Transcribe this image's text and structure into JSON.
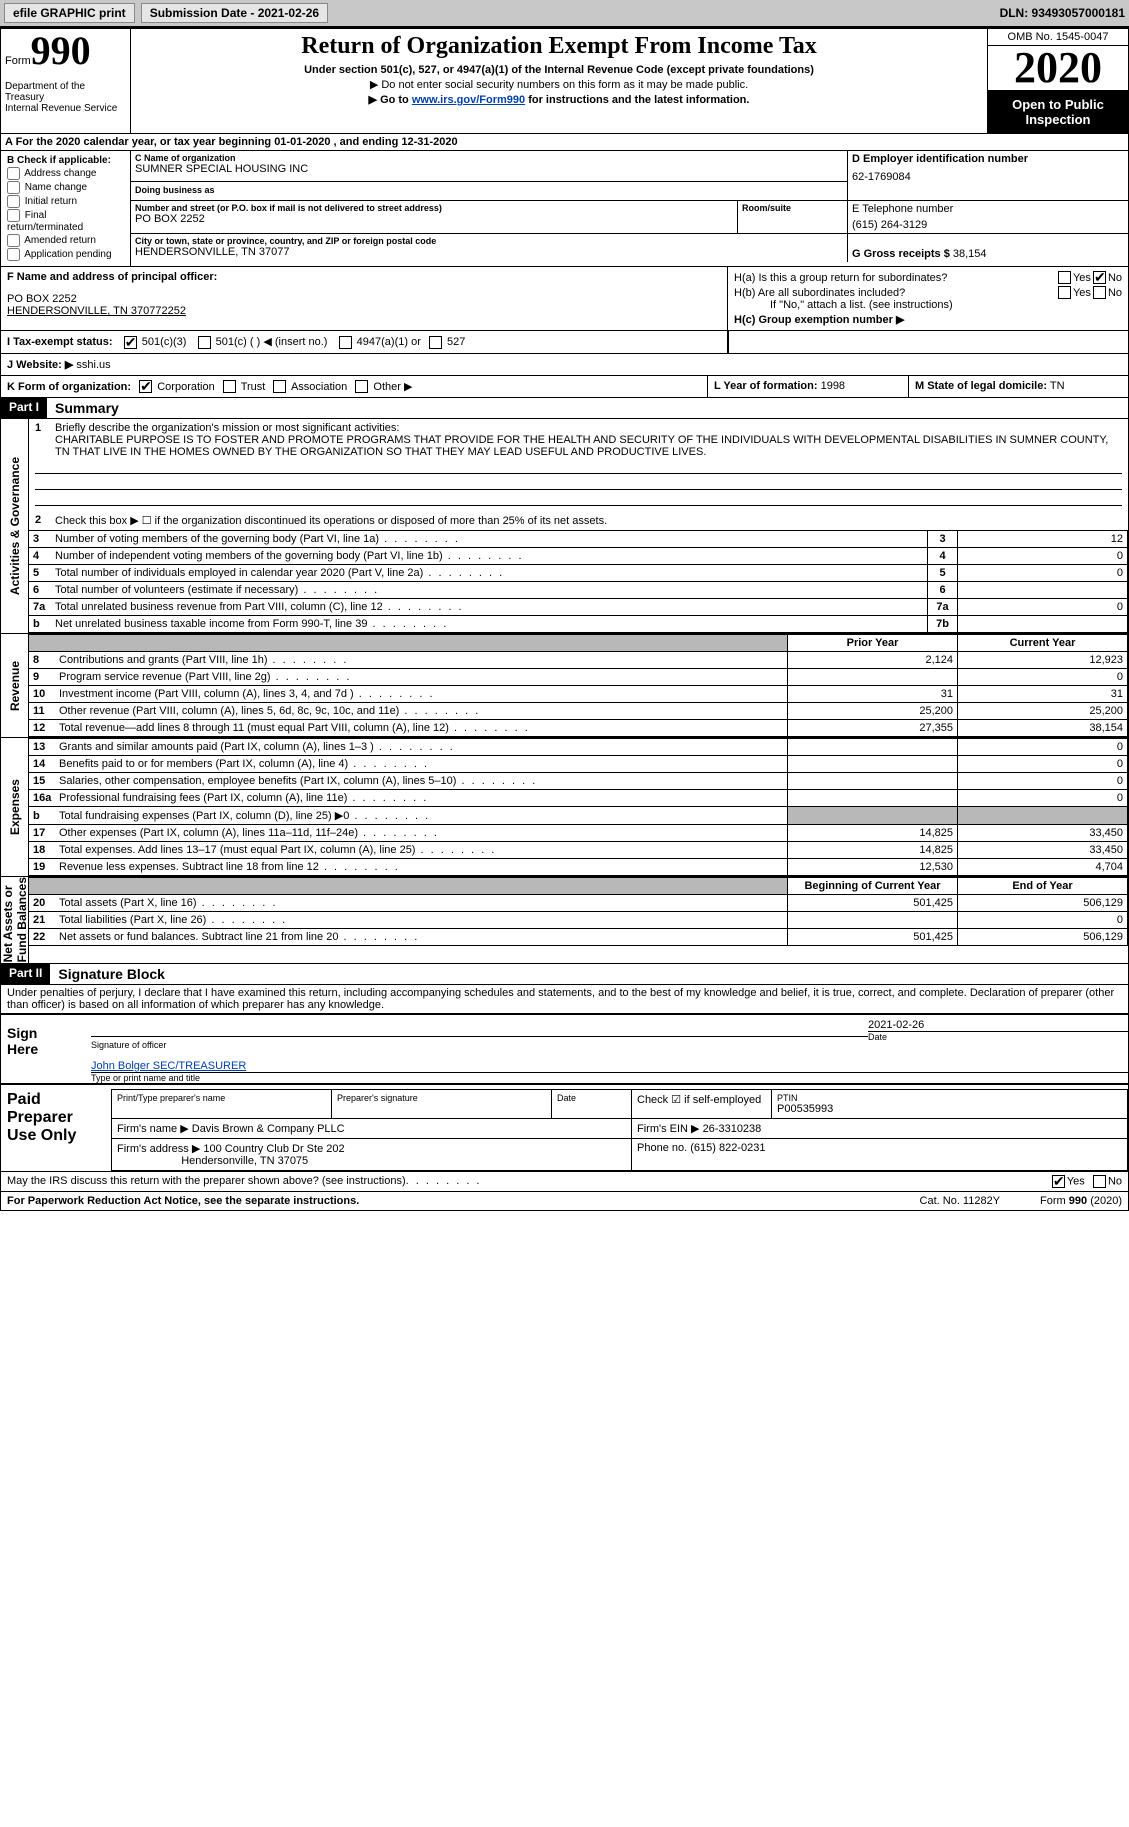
{
  "toolbar": {
    "efile_label": "efile GRAPHIC print",
    "submission_label": "Submission Date - 2021-02-26",
    "dln_label": "DLN: 93493057000181"
  },
  "header": {
    "form_word": "Form",
    "form_num": "990",
    "dept": "Department of the Treasury\nInternal Revenue Service",
    "title": "Return of Organization Exempt From Income Tax",
    "subtitle": "Under section 501(c), 527, or 4947(a)(1) of the Internal Revenue Code (except private foundations)",
    "note1": "▶ Do not enter social security numbers on this form as it may be made public.",
    "note2_pre": "▶ Go to ",
    "note2_link": "www.irs.gov/Form990",
    "note2_post": " for instructions and the latest information.",
    "omb": "OMB No. 1545-0047",
    "year": "2020",
    "open": "Open to Public Inspection"
  },
  "line_a": "A For the 2020 calendar year, or tax year beginning 01-01-2020   , and ending 12-31-2020",
  "box_b": {
    "heading": "B Check if applicable:",
    "items": [
      "Address change",
      "Name change",
      "Initial return",
      "Final return/terminated",
      "Amended return",
      "Application pending"
    ]
  },
  "box_c": {
    "name_lab": "C Name of organization",
    "name": "SUMNER SPECIAL HOUSING INC",
    "dba_lab": "Doing business as",
    "dba": "",
    "addr_lab": "Number and street (or P.O. box if mail is not delivered to street address)",
    "addr": "PO BOX 2252",
    "room_lab": "Room/suite",
    "city_lab": "City or town, state or province, country, and ZIP or foreign postal code",
    "city": "HENDERSONVILLE, TN  37077"
  },
  "box_d": {
    "lab": "D Employer identification number",
    "val": "62-1769084"
  },
  "box_e": {
    "lab": "E Telephone number",
    "val": "(615) 264-3129"
  },
  "box_g": {
    "lab": "G Gross receipts $",
    "val": "38,154"
  },
  "box_f": {
    "lab": "F Name and address of principal officer:",
    "line1": "PO BOX 2252",
    "line2": "HENDERSONVILLE, TN  370772252"
  },
  "box_h": {
    "a_lab": "H(a)  Is this a group return for subordinates?",
    "b_lab": "H(b)  Are all subordinates included?",
    "b_note": "If \"No,\" attach a list. (see instructions)",
    "c_lab": "H(c)  Group exemption number ▶",
    "yes": "Yes",
    "no": "No"
  },
  "box_i": {
    "lab": "I   Tax-exempt status:",
    "opts": [
      "501(c)(3)",
      "501(c) (  ) ◀ (insert no.)",
      "4947(a)(1) or",
      "527"
    ]
  },
  "box_j": {
    "lab": "J   Website: ▶",
    "val": " sshi.us"
  },
  "box_k": {
    "lab": "K Form of organization:",
    "opts": [
      "Corporation",
      "Trust",
      "Association",
      "Other ▶"
    ]
  },
  "box_l": {
    "lab": "L Year of formation:",
    "val": "1998"
  },
  "box_m": {
    "lab": "M State of legal domicile:",
    "val": "TN"
  },
  "part1": {
    "badge": "Part I",
    "title": "Summary",
    "q1_lab": "Briefly describe the organization's mission or most significant activities:",
    "q1_text": "CHARITABLE PURPOSE IS TO FOSTER AND PROMOTE PROGRAMS THAT PROVIDE FOR THE HEALTH AND SECURITY OF THE INDIVIDUALS WITH DEVELOPMENTAL DISABILITIES IN SUMNER COUNTY, TN THAT LIVE IN THE HOMES OWNED BY THE ORGANIZATION SO THAT THEY MAY LEAD USEFUL AND PRODUCTIVE LIVES.",
    "q2": "Check this box ▶ ☐  if the organization discontinued its operations or disposed of more than 25% of its net assets.",
    "vlabels": {
      "gov": "Activities & Governance",
      "rev": "Revenue",
      "exp": "Expenses",
      "net": "Net Assets or\nFund Balances"
    },
    "gov_rows": [
      {
        "n": "3",
        "d": "Number of voting members of the governing body (Part VI, line 1a)",
        "v": "12"
      },
      {
        "n": "4",
        "d": "Number of independent voting members of the governing body (Part VI, line 1b)",
        "v": "0"
      },
      {
        "n": "5",
        "d": "Total number of individuals employed in calendar year 2020 (Part V, line 2a)",
        "v": "0"
      },
      {
        "n": "6",
        "d": "Total number of volunteers (estimate if necessary)",
        "v": ""
      },
      {
        "n": "7a",
        "d": "Total unrelated business revenue from Part VIII, column (C), line 12",
        "v": "0"
      },
      {
        "n": "b",
        "d": "Net unrelated business taxable income from Form 990-T, line 39",
        "v": "",
        "nnum": "7b"
      }
    ],
    "col_py": "Prior Year",
    "col_cy": "Current Year",
    "rev_rows": [
      {
        "n": "8",
        "d": "Contributions and grants (Part VIII, line 1h)",
        "py": "2,124",
        "cy": "12,923"
      },
      {
        "n": "9",
        "d": "Program service revenue (Part VIII, line 2g)",
        "py": "",
        "cy": "0"
      },
      {
        "n": "10",
        "d": "Investment income (Part VIII, column (A), lines 3, 4, and 7d )",
        "py": "31",
        "cy": "31"
      },
      {
        "n": "11",
        "d": "Other revenue (Part VIII, column (A), lines 5, 6d, 8c, 9c, 10c, and 11e)",
        "py": "25,200",
        "cy": "25,200"
      },
      {
        "n": "12",
        "d": "Total revenue—add lines 8 through 11 (must equal Part VIII, column (A), line 12)",
        "py": "27,355",
        "cy": "38,154"
      }
    ],
    "exp_rows": [
      {
        "n": "13",
        "d": "Grants and similar amounts paid (Part IX, column (A), lines 1–3 )",
        "py": "",
        "cy": "0"
      },
      {
        "n": "14",
        "d": "Benefits paid to or for members (Part IX, column (A), line 4)",
        "py": "",
        "cy": "0"
      },
      {
        "n": "15",
        "d": "Salaries, other compensation, employee benefits (Part IX, column (A), lines 5–10)",
        "py": "",
        "cy": "0"
      },
      {
        "n": "16a",
        "d": "Professional fundraising fees (Part IX, column (A), line 11e)",
        "py": "",
        "cy": "0"
      },
      {
        "n": "b",
        "d": "Total fundraising expenses (Part IX, column (D), line 25) ▶0",
        "py": "grey",
        "cy": "grey"
      },
      {
        "n": "17",
        "d": "Other expenses (Part IX, column (A), lines 11a–11d, 11f–24e)",
        "py": "14,825",
        "cy": "33,450"
      },
      {
        "n": "18",
        "d": "Total expenses. Add lines 13–17 (must equal Part IX, column (A), line 25)",
        "py": "14,825",
        "cy": "33,450"
      },
      {
        "n": "19",
        "d": "Revenue less expenses. Subtract line 18 from line 12",
        "py": "12,530",
        "cy": "4,704"
      }
    ],
    "col_boy": "Beginning of Current Year",
    "col_eoy": "End of Year",
    "net_rows": [
      {
        "n": "20",
        "d": "Total assets (Part X, line 16)",
        "py": "501,425",
        "cy": "506,129"
      },
      {
        "n": "21",
        "d": "Total liabilities (Part X, line 26)",
        "py": "",
        "cy": "0"
      },
      {
        "n": "22",
        "d": "Net assets or fund balances. Subtract line 21 from line 20",
        "py": "501,425",
        "cy": "506,129"
      }
    ]
  },
  "part2": {
    "badge": "Part II",
    "title": "Signature Block",
    "decl": "Under penalties of perjury, I declare that I have examined this return, including accompanying schedules and statements, and to the best of my knowledge and belief, it is true, correct, and complete. Declaration of preparer (other than officer) is based on all information of which preparer has any knowledge.",
    "sign_here": "Sign Here",
    "sig_officer": "Signature of officer",
    "sig_date_lab": "Date",
    "sig_date": "2021-02-26",
    "officer_name": "John Bolger SEC/TREASURER",
    "officer_cap": "Type or print name and title",
    "paid": "Paid Preparer Use Only",
    "pt_lab": "Print/Type preparer's name",
    "ps_lab": "Preparer's signature",
    "date_lab": "Date",
    "check_lab": "Check ☑ if self-employed",
    "ptin_lab": "PTIN",
    "ptin": "P00535993",
    "firm_name_lab": "Firm's name   ▶",
    "firm_name": "Davis Brown & Company PLLC",
    "firm_ein_lab": "Firm's EIN ▶",
    "firm_ein": "26-3310238",
    "firm_addr_lab": "Firm's address ▶",
    "firm_addr1": "100 Country Club Dr Ste 202",
    "firm_addr2": "Hendersonville, TN  37075",
    "phone_lab": "Phone no.",
    "phone": "(615) 822-0231",
    "discuss": "May the IRS discuss this return with the preparer shown above? (see instructions)"
  },
  "footer": {
    "pra": "For Paperwork Reduction Act Notice, see the separate instructions.",
    "cat": "Cat. No. 11282Y",
    "form": "Form 990 (2020)"
  }
}
